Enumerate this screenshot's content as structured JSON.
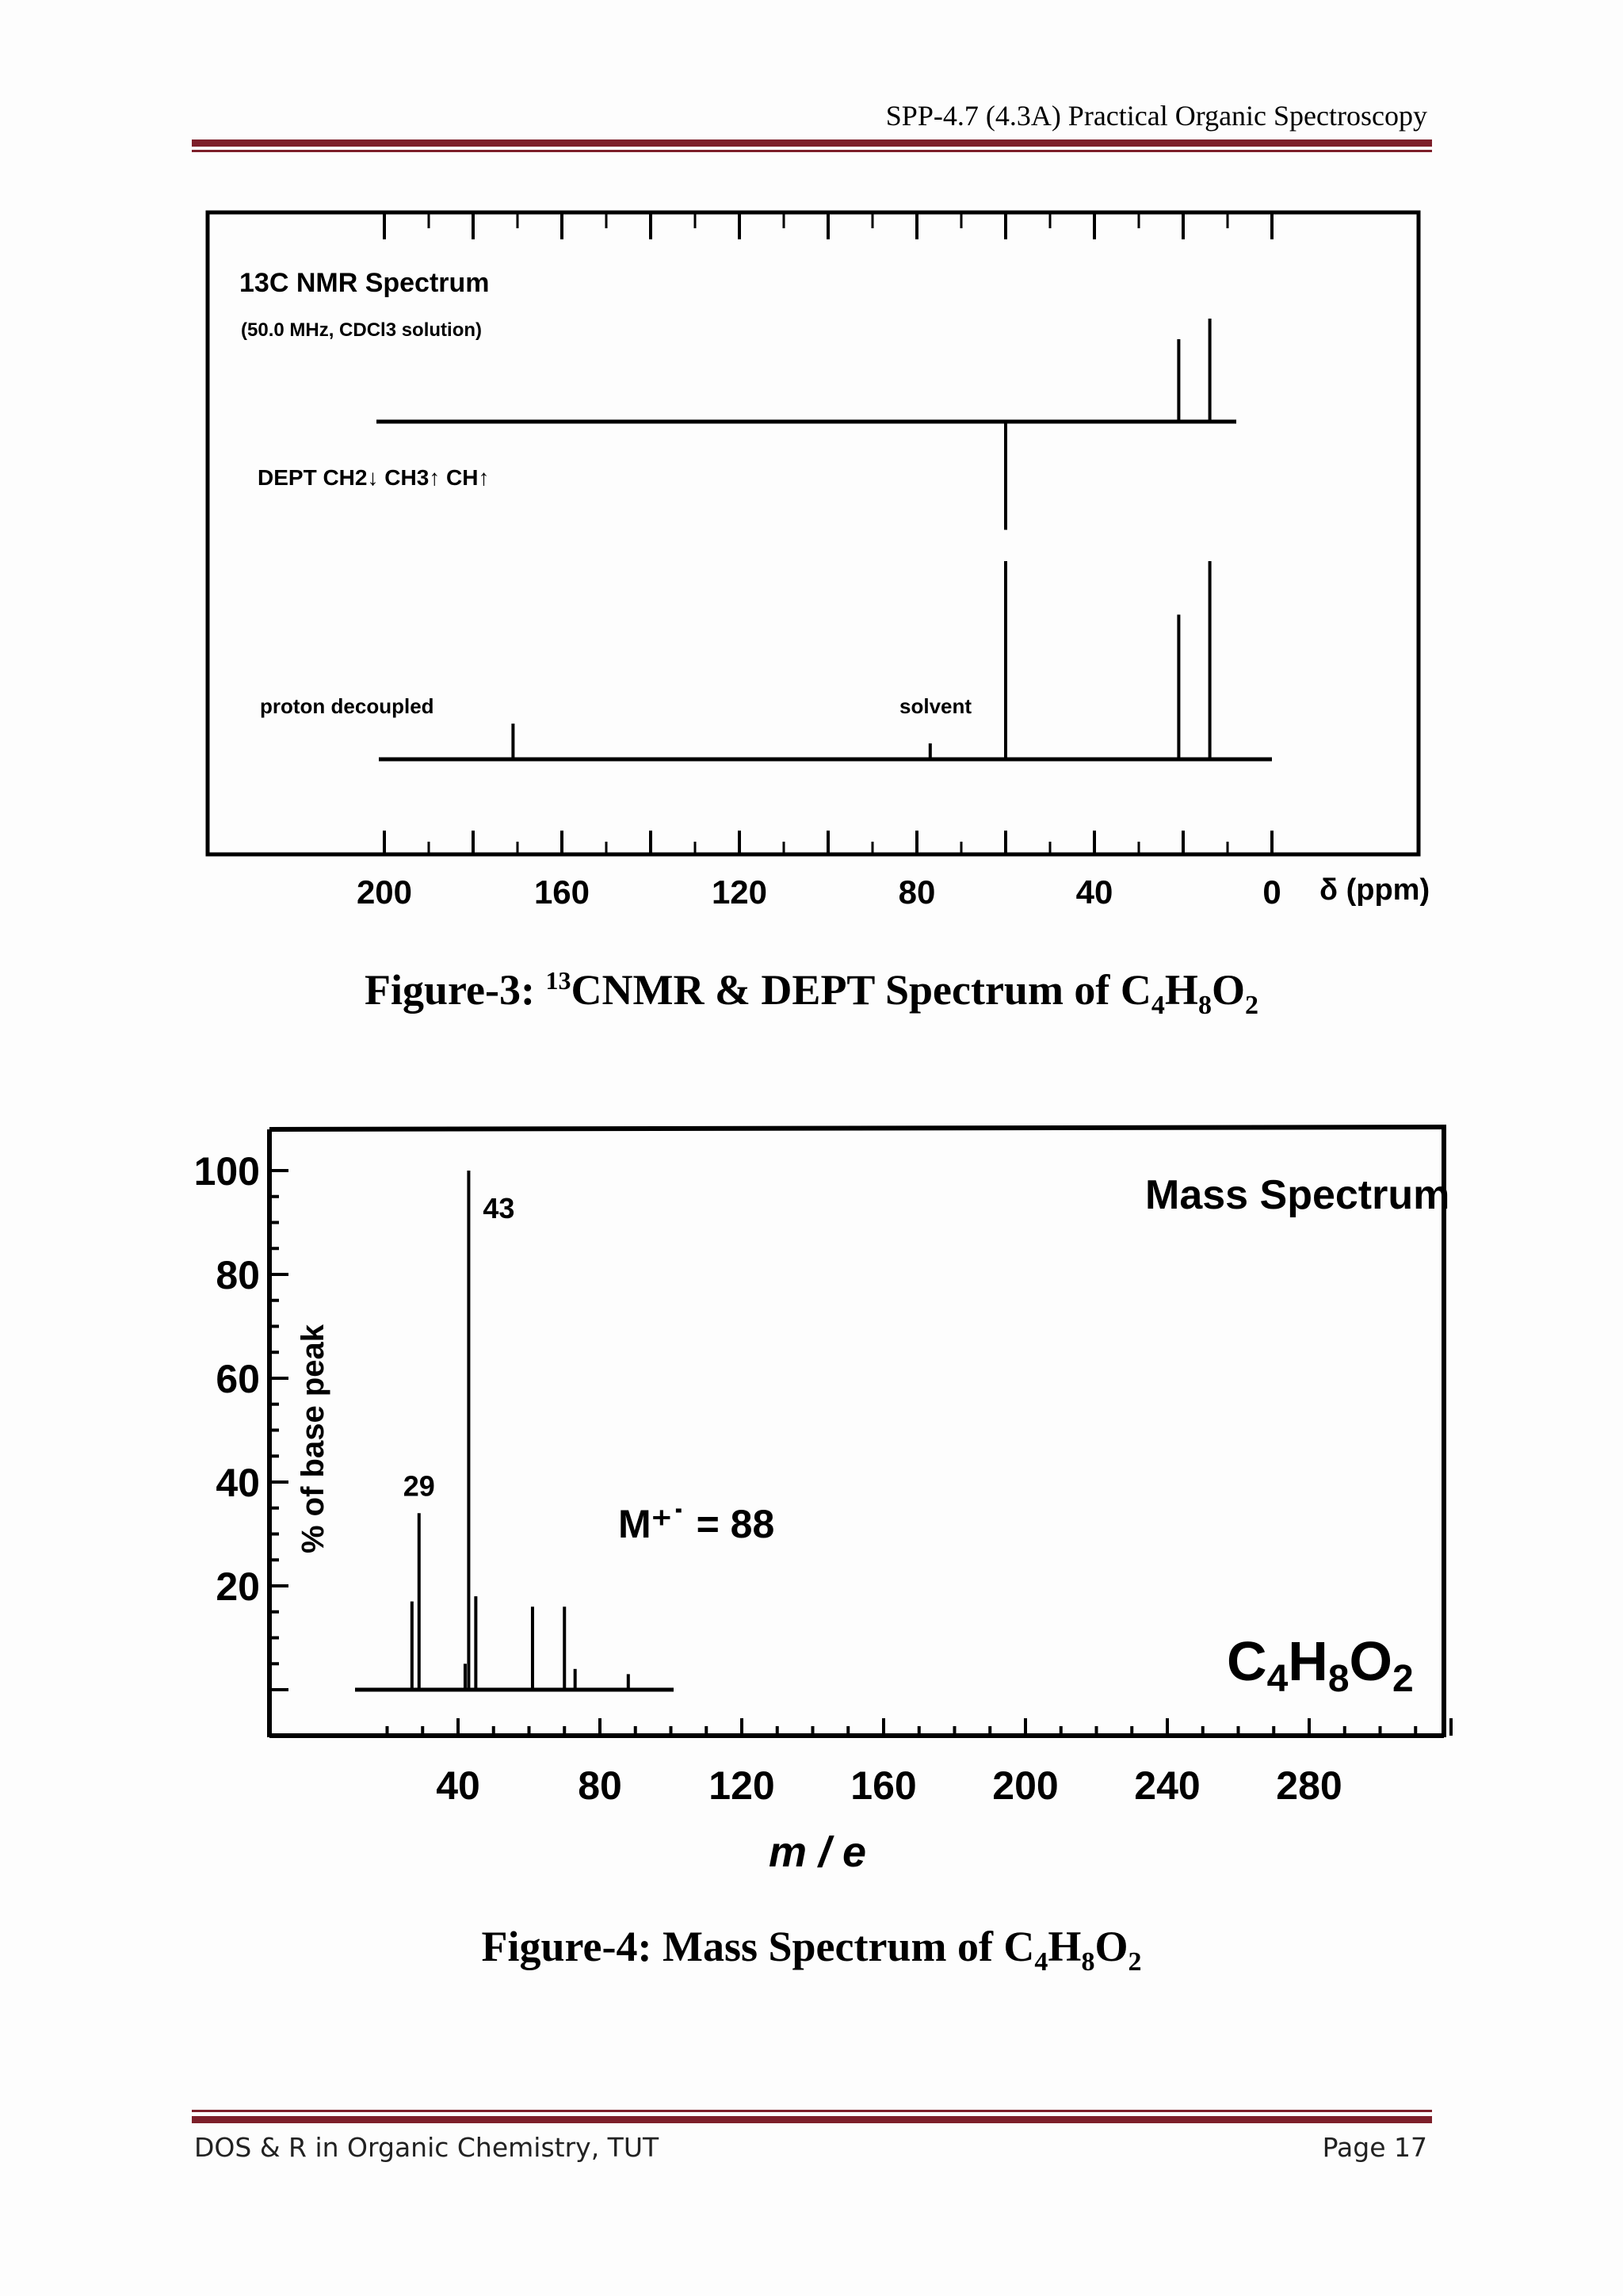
{
  "header": {
    "title": "SPP-4.7 (4.3A) Practical Organic Spectroscopy"
  },
  "figure3": {
    "title": "13C NMR Spectrum",
    "conditions": "(50.0 MHz, CDCl3 solution)",
    "dept_label": "DEPT  CH2↓  CH3↑  CH↑",
    "proton_label": "proton decoupled",
    "solvent_label": "solvent",
    "axis_unit": "δ (ppm)",
    "caption": {
      "prefix": "Figure-3: ",
      "sup": "13",
      "main": "CNMR & DEPT Spectrum of C",
      "s1": "4",
      "h": "H",
      "s2": "8",
      "o": "O",
      "s3": "2"
    }
  },
  "figure4": {
    "title": "Mass Spectrum",
    "ylabel": "% of base peak",
    "xlabel": "m / e",
    "molecular_ion": "M⁺˙ = 88",
    "formula": {
      "c": "C",
      "n1": "4",
      "h": "H",
      "n2": "8",
      "o": "O",
      "n3": "2"
    },
    "caption": {
      "prefix": "Figure-4: Mass Spectrum of C",
      "s1": "4",
      "h": "H",
      "s2": "8",
      "o": "O",
      "s3": "2"
    }
  },
  "footer": {
    "left": "DOS & R in Organic Chemistry, TUT",
    "right": "Page 17"
  },
  "chart_data": [
    {
      "type": "line",
      "title": "13C NMR Spectrum",
      "subtitle": "(50.0 MHz, CDCl3 solution)",
      "xlabel": "δ (ppm)",
      "xlim": [
        200,
        0
      ],
      "xticks": [
        200,
        160,
        120,
        80,
        40,
        0
      ],
      "series": [
        {
          "name": "DEPT",
          "peaks": [
            {
              "x": 21,
              "y": 0.8,
              "direction": "up"
            },
            {
              "x": 14,
              "y": 1.0,
              "direction": "up"
            },
            {
              "x": 60,
              "y": 1.0,
              "direction": "down"
            }
          ]
        },
        {
          "name": "proton decoupled",
          "peaks": [
            {
              "x": 171,
              "y": 0.18
            },
            {
              "x": 77,
              "y": 0.08,
              "label": "solvent"
            },
            {
              "x": 60,
              "y": 1.0
            },
            {
              "x": 21,
              "y": 0.73
            },
            {
              "x": 14,
              "y": 1.0
            }
          ]
        }
      ]
    },
    {
      "type": "bar",
      "title": "Mass Spectrum",
      "xlabel": "m / e",
      "ylabel": "% of base peak",
      "xlim": [
        10,
        320
      ],
      "ylim": [
        0,
        100
      ],
      "xticks": [
        40,
        80,
        120,
        160,
        200,
        240,
        280
      ],
      "yticks": [
        20,
        40,
        60,
        80,
        100
      ],
      "peaks": [
        {
          "x": 27,
          "y": 17
        },
        {
          "x": 29,
          "y": 34,
          "label": "29"
        },
        {
          "x": 42,
          "y": 5
        },
        {
          "x": 43,
          "y": 100,
          "label": "43"
        },
        {
          "x": 45,
          "y": 18
        },
        {
          "x": 61,
          "y": 16
        },
        {
          "x": 70,
          "y": 16
        },
        {
          "x": 73,
          "y": 4
        },
        {
          "x": 88,
          "y": 3
        }
      ],
      "annotation": "M⁺˙ = 88"
    }
  ]
}
